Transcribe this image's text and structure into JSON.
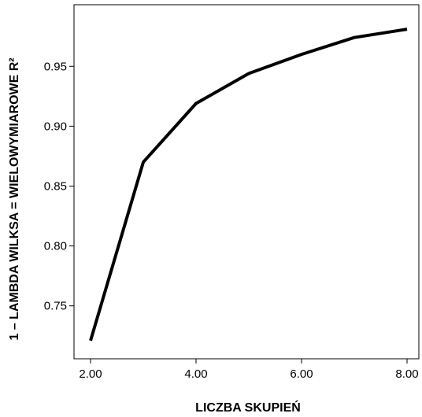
{
  "chart_data": {
    "type": "line",
    "title": "",
    "xlabel": "LICZBA SKUPIEŃ",
    "ylabel": "1 – LAMBDA WILKSA = WIELOWYMIAROWE R²",
    "xlim": [
      2.0,
      8.0
    ],
    "ylim": [
      0.715,
      0.985
    ],
    "x_ticks": [
      2.0,
      4.0,
      6.0,
      8.0
    ],
    "x_tick_labels": [
      "2.00",
      "4.00",
      "6.00",
      "8.00"
    ],
    "y_ticks": [
      0.75,
      0.8,
      0.85,
      0.9,
      0.95
    ],
    "y_tick_labels": [
      "0.75",
      "0.80",
      "0.85",
      "0.90",
      "0.95"
    ],
    "grid": false,
    "legend": "none",
    "series": [
      {
        "x": [
          2,
          3,
          4,
          5,
          6,
          7,
          8
        ],
        "values": [
          0.721,
          0.87,
          0.919,
          0.944,
          0.96,
          0.974,
          0.981
        ],
        "color": "#000000"
      }
    ]
  }
}
